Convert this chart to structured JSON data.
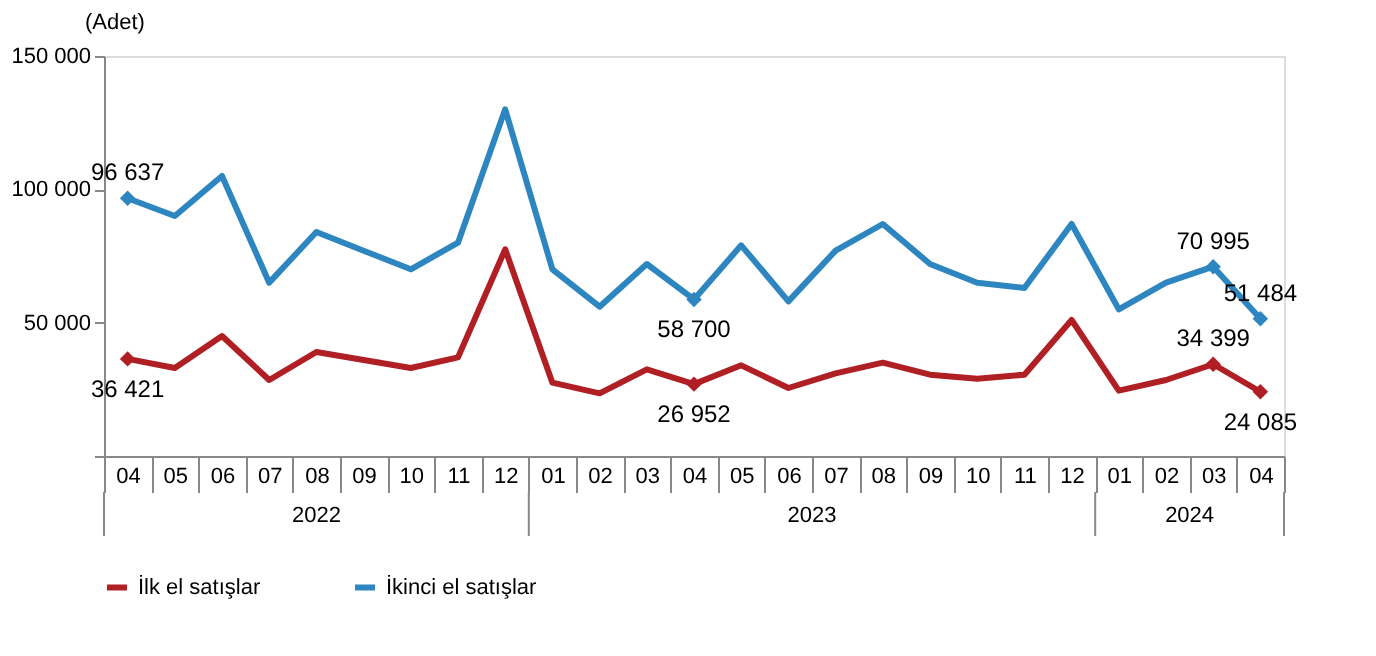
{
  "chart_data": {
    "type": "line",
    "ylabel": "(Adet)",
    "categories": [
      "04",
      "05",
      "06",
      "07",
      "08",
      "09",
      "10",
      "11",
      "12",
      "01",
      "02",
      "03",
      "04",
      "05",
      "06",
      "07",
      "08",
      "09",
      "10",
      "11",
      "12",
      "01",
      "02",
      "03",
      "04"
    ],
    "annotations": [
      "2022",
      "2023",
      "2024"
    ],
    "ylim": [
      0,
      150000
    ],
    "yticks": [
      {
        "value": 0,
        "label": null
      },
      {
        "value": 50000,
        "label": "50 000"
      },
      {
        "value": 100000,
        "label": "100 000"
      },
      {
        "value": 150000,
        "label": "150 000"
      }
    ],
    "grid": false,
    "legend": "bottom",
    "line_style": "solid",
    "series": [
      {
        "name": "İlk el satışlar",
        "color": "#b01f24",
        "values": [
          36421,
          33000,
          45000,
          28500,
          39000,
          36000,
          33000,
          37000,
          77500,
          27500,
          23500,
          32500,
          26952,
          34000,
          25500,
          31000,
          35000,
          30500,
          29000,
          30500,
          51000,
          24500,
          28500,
          34399,
          24085
        ],
        "value_labels": [
          "36 421",
          null,
          null,
          null,
          null,
          null,
          null,
          null,
          null,
          null,
          null,
          null,
          "26 952",
          null,
          null,
          null,
          null,
          null,
          null,
          null,
          null,
          null,
          null,
          "34 399",
          "24 085"
        ]
      },
      {
        "name": "İkinci el satışlar",
        "color": "#2e86c1",
        "values": [
          96637,
          90000,
          105000,
          65000,
          84000,
          77000,
          70000,
          80000,
          130000,
          70000,
          56000,
          72000,
          58700,
          79000,
          58000,
          77000,
          87000,
          72000,
          65000,
          63000,
          87000,
          55000,
          65000,
          70995,
          51484
        ],
        "value_labels": [
          "96 637",
          null,
          null,
          null,
          null,
          null,
          null,
          null,
          null,
          null,
          null,
          null,
          "58 700",
          null,
          null,
          null,
          null,
          null,
          null,
          null,
          null,
          null,
          null,
          "70 995",
          "51 484"
        ]
      }
    ]
  }
}
